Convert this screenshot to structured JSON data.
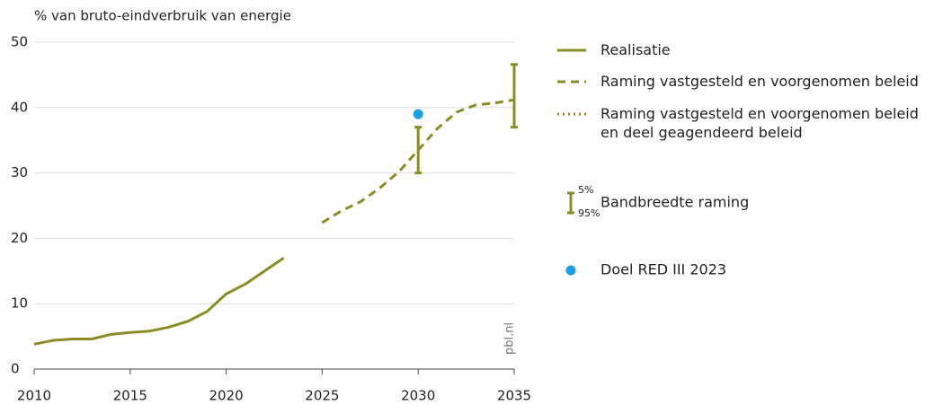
{
  "chart_data": {
    "type": "line",
    "y_label": "% van bruto-eindverbruik van energie",
    "x": [
      2010,
      2011,
      2012,
      2013,
      2014,
      2015,
      2016,
      2017,
      2018,
      2019,
      2020,
      2021,
      2022,
      2023,
      2024,
      2025,
      2026,
      2027,
      2028,
      2029,
      2030,
      2031,
      2032,
      2033,
      2034,
      2035
    ],
    "series": [
      {
        "name": "Realisatie",
        "color": "#8c8c26",
        "style": "solid",
        "values": [
          3.8,
          4.4,
          4.6,
          4.6,
          5.3,
          5.6,
          5.8,
          6.4,
          7.3,
          8.8,
          11.5,
          13.0,
          15.0,
          17.0,
          null,
          null,
          null,
          null,
          null,
          null,
          null,
          null,
          null,
          null,
          null,
          null
        ]
      },
      {
        "name": "Raming vastgesteld en voorgenomen beleid",
        "color": "#8c8c26",
        "style": "dashed",
        "values": [
          null,
          null,
          null,
          null,
          null,
          null,
          null,
          null,
          null,
          null,
          null,
          null,
          null,
          null,
          null,
          22.4,
          24.2,
          25.6,
          27.7,
          30.2,
          33.5,
          36.8,
          39.3,
          40.4,
          40.7,
          41.2
        ]
      },
      {
        "name": "Raming vastgesteld en voorgenomen beleid en deel geagendeerd beleid",
        "color": "#8c8c26",
        "style": "dotted",
        "values": [
          null,
          null,
          null,
          null,
          null,
          null,
          null,
          null,
          null,
          null,
          null,
          null,
          null,
          null,
          null,
          null,
          null,
          null,
          null,
          null,
          null,
          null,
          null,
          null,
          null,
          null
        ]
      }
    ],
    "error_bars": {
      "name": "Bandbreedte raming",
      "color": "#8c8c26",
      "high_label": "5%",
      "low_label": "95%",
      "points": [
        {
          "x": 2030,
          "low": 30,
          "high": 37
        },
        {
          "x": 2035,
          "low": 37,
          "high": 46.6
        }
      ]
    },
    "target": {
      "name": "Doel RED III 2023",
      "color": "#1a9fe0",
      "x": 2030,
      "value": 39
    },
    "xlim": [
      2010,
      2035
    ],
    "xticks": [
      2010,
      2015,
      2020,
      2025,
      2030,
      2035
    ],
    "ylim": [
      0,
      50
    ],
    "yticks": [
      0,
      10,
      20,
      30,
      40,
      50
    ],
    "grid": true,
    "source": "pbl.nl"
  }
}
